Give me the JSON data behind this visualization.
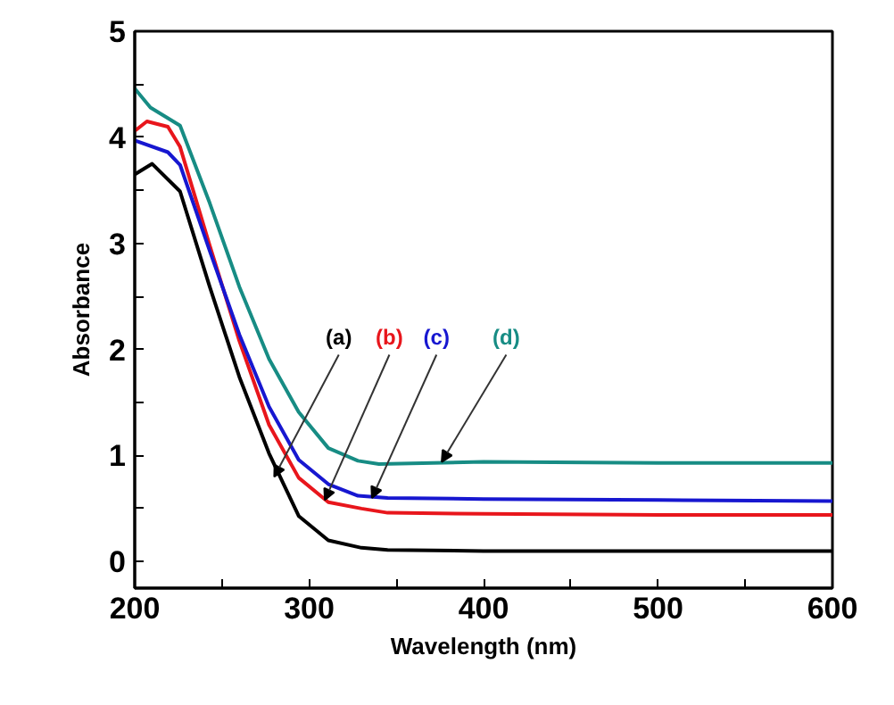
{
  "chart_data": {
    "type": "line",
    "xlabel": "Wavelength (nm)",
    "ylabel": "Absorbance",
    "xlim": [
      200,
      600
    ],
    "ylim": [
      -0.25,
      5
    ],
    "xticks": [
      200,
      {
        "value": 250,
        "label": null
      },
      300,
      {
        "value": 350,
        "label": null
      },
      400,
      {
        "value": 450,
        "label": null
      },
      500,
      {
        "value": 550,
        "label": null
      },
      600
    ],
    "yticks": [
      0,
      {
        "value": 0.5,
        "label": null
      },
      1,
      {
        "value": 1.5,
        "label": null
      },
      2,
      {
        "value": 2.5,
        "label": null
      },
      3,
      {
        "value": 3.5,
        "label": null
      },
      4,
      {
        "value": 4.5,
        "label": null
      },
      5
    ],
    "grid": false,
    "marker": "none",
    "line_style": "solid",
    "series": [
      {
        "color": "#000000",
        "x": [
          200,
          210,
          226,
          243,
          260,
          277,
          294,
          311,
          330,
          345,
          400,
          500,
          600
        ],
        "values": [
          3.65,
          3.75,
          3.49,
          2.59,
          1.74,
          1.02,
          0.43,
          0.2,
          0.13,
          0.11,
          0.1,
          0.1,
          0.1
        ]
      },
      {
        "color": "#e8161c",
        "x": [
          200,
          207,
          219,
          226,
          243,
          260,
          277,
          294,
          311,
          330,
          345,
          400,
          500,
          600
        ],
        "values": [
          4.06,
          4.15,
          4.1,
          3.91,
          2.98,
          2.08,
          1.29,
          0.79,
          0.56,
          0.5,
          0.46,
          0.45,
          0.44,
          0.44
        ]
      },
      {
        "color": "#1717d0",
        "x": [
          200,
          219,
          226,
          243,
          260,
          277,
          294,
          311,
          328,
          345,
          400,
          500,
          600
        ],
        "values": [
          3.97,
          3.86,
          3.74,
          2.93,
          2.14,
          1.46,
          0.96,
          0.73,
          0.62,
          0.6,
          0.59,
          0.58,
          0.57
        ]
      },
      {
        "color": "#178c84",
        "x": [
          200,
          209,
          226,
          243,
          260,
          277,
          294,
          311,
          328,
          340,
          400,
          500,
          600
        ],
        "values": [
          4.46,
          4.28,
          4.11,
          3.38,
          2.59,
          1.91,
          1.41,
          1.07,
          0.95,
          0.92,
          0.94,
          0.93,
          0.93
        ]
      }
    ],
    "annotations": [
      {
        "text": "(a)",
        "x": 280,
        "y": 0.8
      },
      {
        "text": "(b)",
        "x": 309,
        "y": 0.58
      },
      {
        "text": "(c)",
        "x": 336,
        "y": 0.6
      },
      {
        "text": "(d)",
        "x": 376,
        "y": 0.94
      }
    ]
  }
}
